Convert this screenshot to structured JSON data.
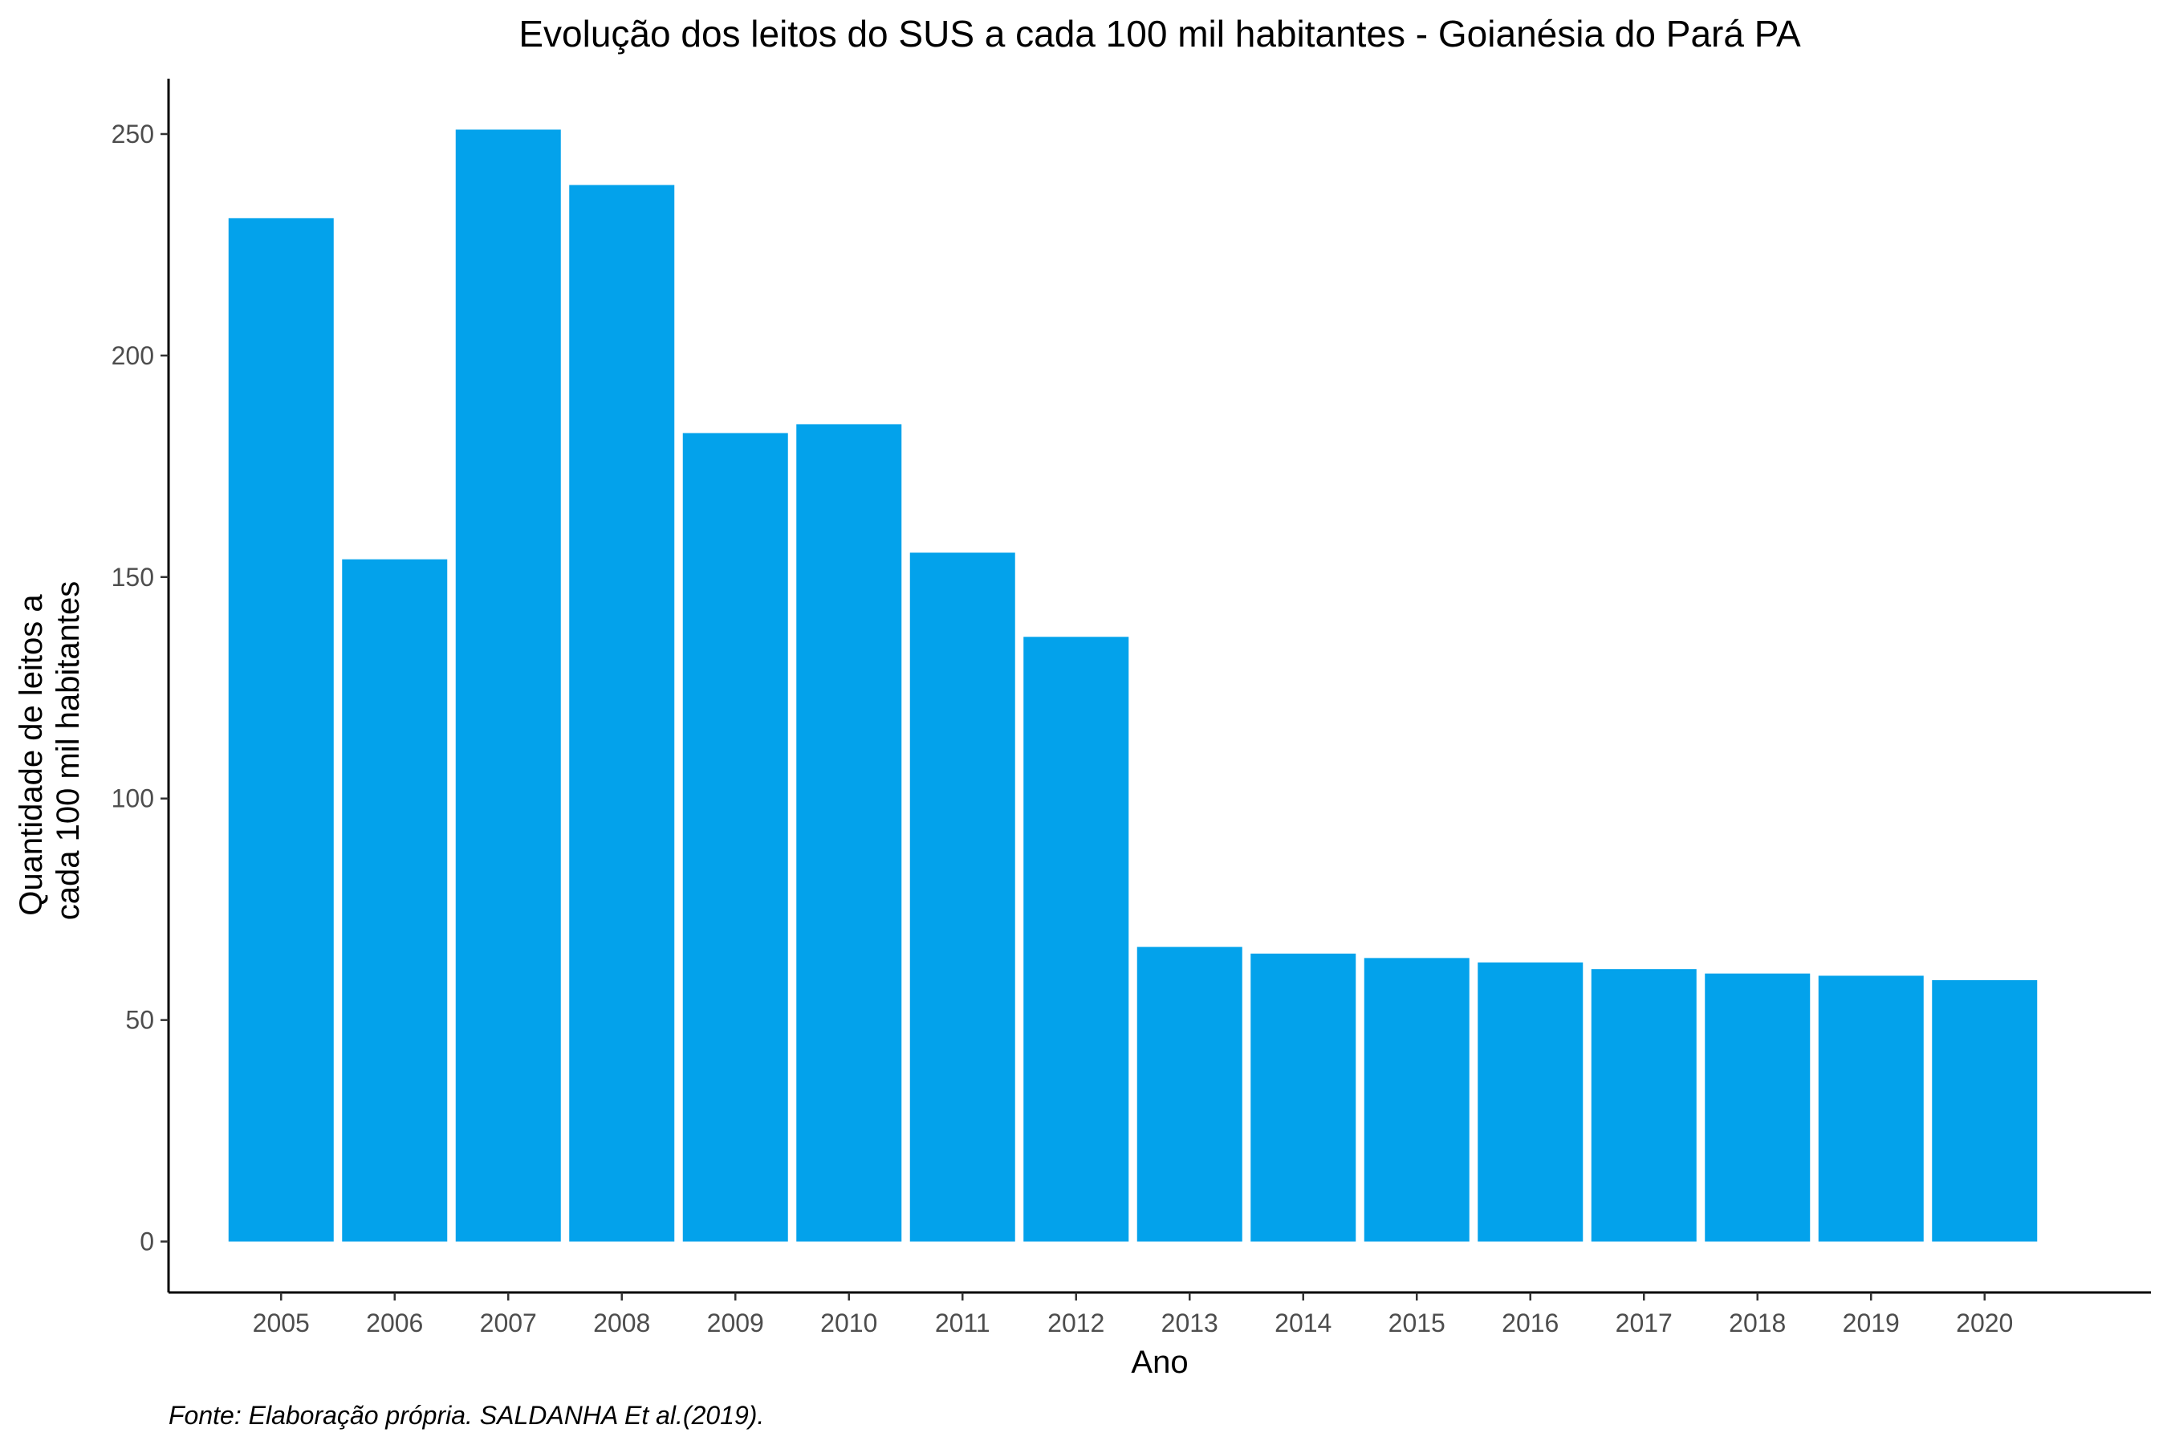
{
  "chart_data": {
    "type": "bar",
    "title": "Evolução dos leitos do SUS a cada 100 mil habitantes -  Goianésia do Pará PA",
    "xlabel": "Ano",
    "ylabel_lines": [
      "Quantidade de leitos a",
      "cada 100 mil habitantes"
    ],
    "caption": "Fonte: Elaboração própria. SALDANHA Et al.(2019).",
    "categories": [
      "2005",
      "2006",
      "2007",
      "2008",
      "2009",
      "2010",
      "2011",
      "2012",
      "2013",
      "2014",
      "2015",
      "2016",
      "2017",
      "2018",
      "2019",
      "2020"
    ],
    "values": [
      231,
      154,
      251,
      238.5,
      182.5,
      184.5,
      155.5,
      136.5,
      66.5,
      65,
      64,
      63,
      61.5,
      60.5,
      60,
      59
    ],
    "ylim": [
      -11.5,
      262.5
    ],
    "yticks": [
      0,
      50,
      100,
      150,
      200,
      250
    ],
    "bar_color": "#03A2EB",
    "grid": false
  }
}
